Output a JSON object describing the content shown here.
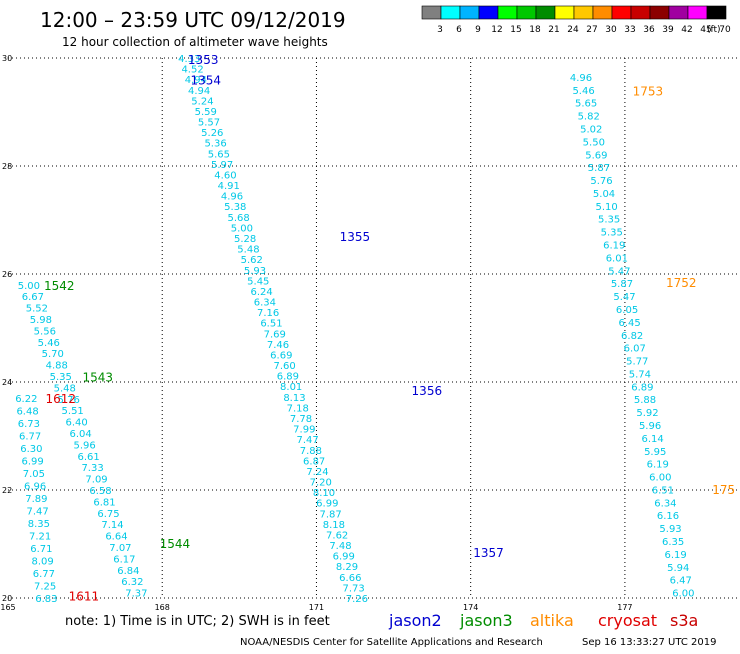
{
  "header": {
    "title": "12:00 – 23:59 UTC 09/12/2019",
    "subtitle": "12 hour collection of altimeter wave heights"
  },
  "colorbar": {
    "labels": [
      "3",
      "6",
      "9",
      "12",
      "15",
      "18",
      "21",
      "24",
      "27",
      "30",
      "33",
      "36",
      "39",
      "42",
      "45",
      "70"
    ],
    "unit": "(ft)",
    "colors": [
      "#808080",
      "#00ffff",
      "#00b4ff",
      "#0000ff",
      "#00ff00",
      "#00c800",
      "#008c00",
      "#ffff00",
      "#ffc800",
      "#ff8c00",
      "#ff0000",
      "#c80000",
      "#8c0000",
      "#a000a0",
      "#ff00ff",
      "#000000"
    ]
  },
  "footer": {
    "note": "note:  1) Time is in UTC;  2) SWH is in feet",
    "legend": [
      {
        "name": "jason2",
        "color": "#0000d0"
      },
      {
        "name": "jason3",
        "color": "#008c00"
      },
      {
        "name": "altika",
        "color": "#ff8c00"
      },
      {
        "name": "cryosat",
        "color": "#e00000"
      },
      {
        "name": "s3a",
        "color": "#c80000"
      }
    ],
    "credit": "NOAA/NESDIS Center for Satellite Applications and Research",
    "timestamp": "Sep 16 13:33:27 UTC 2019"
  },
  "chart_data": {
    "type": "scatter",
    "xlim": [
      165,
      179.2
    ],
    "ylim": [
      20,
      30
    ],
    "x_ticks": [
      165,
      168,
      171,
      174,
      177
    ],
    "y_ticks": [
      20,
      22,
      24,
      26,
      28,
      30
    ],
    "grid": true,
    "value_color": "#00c8e6",
    "tracks": [
      {
        "x0": 168.31,
        "y0": 30.0,
        "x1": 171.57,
        "y1": 20.0,
        "values": [
          "4.33",
          "4.52",
          "4.94",
          "4.94",
          "5.24",
          "5.59",
          "5.57",
          "5.26",
          "5.36",
          "5.65",
          "5.97",
          "4.60",
          "4.91",
          "4.96",
          "5.38",
          "5.68",
          "5.00",
          "5.28",
          "5.48",
          "5.62",
          "5.93",
          "5.45",
          "6.24",
          "6.34",
          "7.16",
          "6.51",
          "7.69",
          "7.46",
          "6.69",
          "7.60",
          "6.89",
          "8.01",
          "8.13",
          "7.18",
          "7.78",
          "7.99",
          "7.47",
          "7.88",
          "6.87",
          "7.24",
          "7.20",
          "8.10",
          "6.99",
          "7.87",
          "8.18",
          "7.62",
          "7.48",
          "6.99",
          "8.29",
          "6.66",
          "7.73",
          "7.26"
        ]
      },
      {
        "x0": 165.19,
        "y0": 25.8,
        "x1": 167.28,
        "y1": 20.1,
        "values": [
          "5.00",
          "6.67",
          "5.52",
          "5.98",
          "5.56",
          "5.46",
          "5.70",
          "4.88",
          "5.35",
          "5.48",
          "5.76",
          "5.51",
          "6.40",
          "6.04",
          "5.96",
          "6.61",
          "7.33",
          "7.09",
          "6.58",
          "6.81",
          "6.75",
          "7.14",
          "6.64",
          "7.07",
          "6.17",
          "6.84",
          "6.32",
          "7.37"
        ]
      },
      {
        "x0": 165.14,
        "y0": 23.7,
        "x1": 165.53,
        "y1": 20.0,
        "values": [
          "6.22",
          "6.48",
          "6.73",
          "6.77",
          "6.30",
          "6.99",
          "7.05",
          "6.96",
          "7.89",
          "7.47",
          "8.35",
          "7.21",
          "6.71",
          "8.09",
          "6.77",
          "7.25",
          "6.83"
        ]
      },
      {
        "x0": 175.93,
        "y0": 29.65,
        "x1": 177.92,
        "y1": 20.1,
        "values": [
          "4.96",
          "5.46",
          "5.65",
          "5.82",
          "5.02",
          "5.50",
          "5.69",
          "5.87",
          "5.76",
          "5.04",
          "5.10",
          "5.35",
          "5.35",
          "6.19",
          "6.01",
          "5.47",
          "5.87",
          "5.47",
          "6.05",
          "6.45",
          "6.82",
          "6.07",
          "5.77",
          "5.74",
          "6.89",
          "5.88",
          "5.92",
          "5.96",
          "6.14",
          "5.95",
          "6.19",
          "6.00",
          "6.51",
          "6.34",
          "6.16",
          "5.93",
          "6.35",
          "6.19",
          "5.94",
          "6.47",
          "6.00"
        ]
      }
    ],
    "labels": [
      {
        "text": "1353",
        "x": 168.5,
        "y": 29.98,
        "satellite": "jason2"
      },
      {
        "text": "1354",
        "x": 168.55,
        "y": 29.6,
        "satellite": "jason2"
      },
      {
        "text": "1355",
        "x": 171.45,
        "y": 26.7,
        "satellite": "jason2"
      },
      {
        "text": "1356",
        "x": 172.85,
        "y": 23.85,
        "satellite": "jason2"
      },
      {
        "text": "1357",
        "x": 174.05,
        "y": 20.85,
        "satellite": "jason2"
      },
      {
        "text": "1542",
        "x": 165.7,
        "y": 25.8,
        "satellite": "jason3"
      },
      {
        "text": "1543",
        "x": 166.45,
        "y": 24.1,
        "satellite": "jason3"
      },
      {
        "text": "1544",
        "x": 167.95,
        "y": 21.02,
        "satellite": "jason3"
      },
      {
        "text": "1753",
        "x": 177.15,
        "y": 29.4,
        "satellite": "altika"
      },
      {
        "text": "1752",
        "x": 177.8,
        "y": 25.85,
        "satellite": "altika"
      },
      {
        "text": "175",
        "x": 178.7,
        "y": 22.02,
        "satellite": "altika"
      },
      {
        "text": "1612",
        "x": 165.73,
        "y": 23.7,
        "satellite": "cryosat"
      },
      {
        "text": "1611",
        "x": 166.18,
        "y": 20.05,
        "satellite": "cryosat"
      }
    ]
  }
}
